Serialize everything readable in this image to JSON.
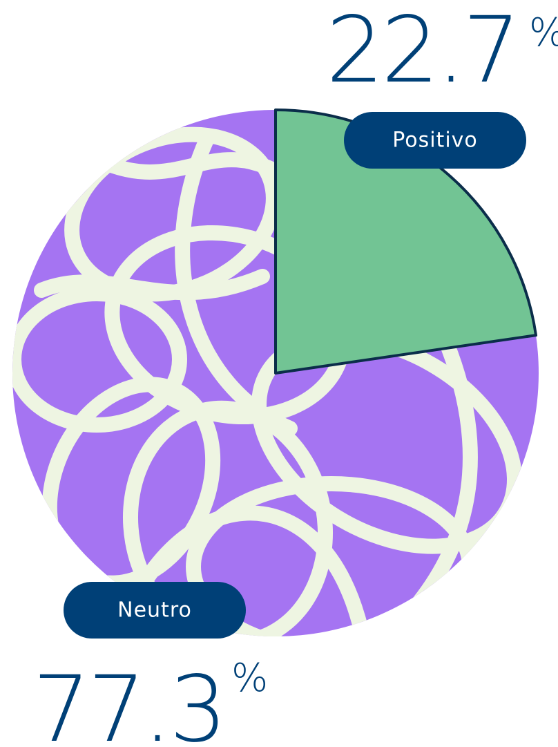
{
  "chart_data": {
    "type": "pie",
    "categories": [
      "Positivo",
      "Neutro"
    ],
    "values": [
      22.7,
      77.3
    ],
    "unit_label": "%",
    "colors": [
      "#72c494",
      "#a574f2"
    ]
  }
}
